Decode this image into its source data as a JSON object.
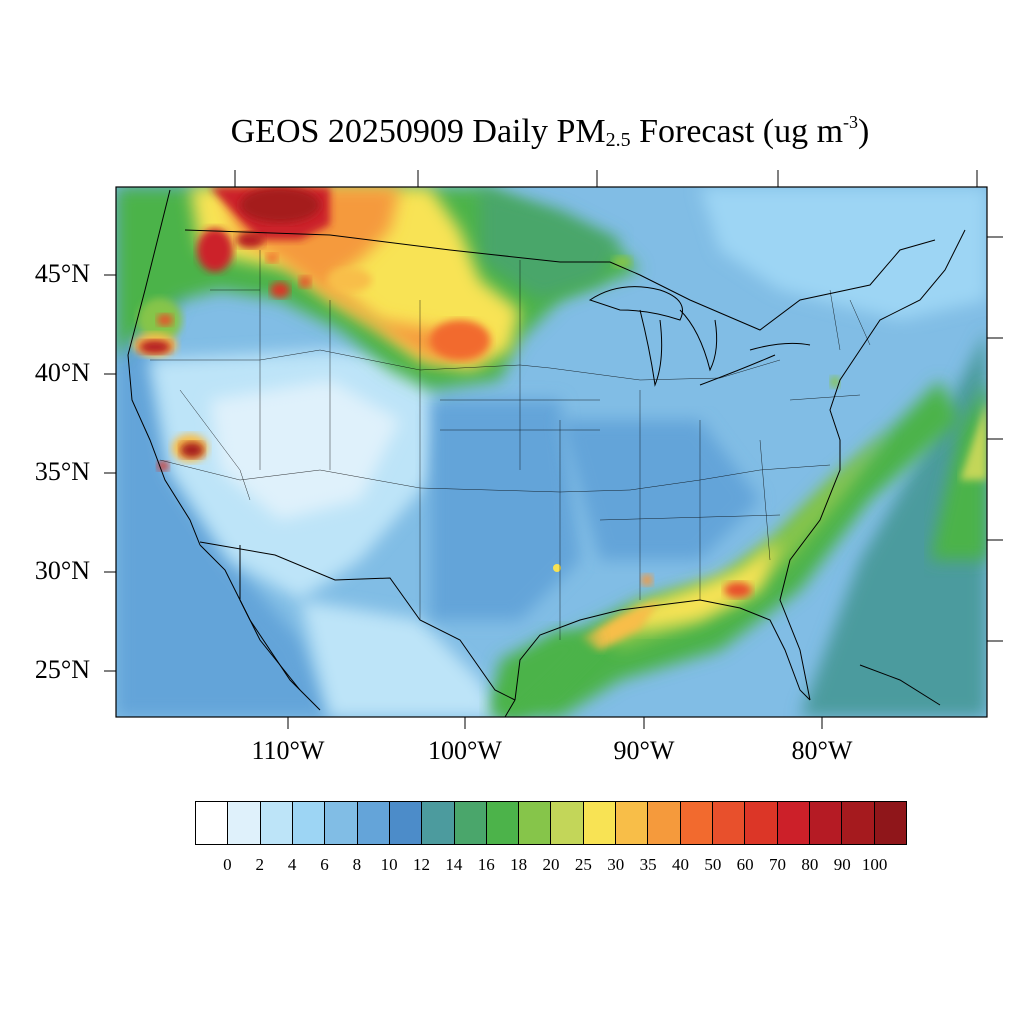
{
  "title": {
    "prefix": "GEOS 20250909 Daily PM",
    "subscript": "2.5",
    "middle": " Forecast (ug m",
    "superscript": "-3",
    "suffix": ")"
  },
  "latitude_labels": [
    "45°N",
    "40°N",
    "35°N",
    "30°N",
    "25°N"
  ],
  "longitude_labels": [
    "110°W",
    "100°W",
    "90°W",
    "80°W"
  ],
  "colorbar": {
    "colors": [
      "#ffffff",
      "#dff1fb",
      "#bde4f8",
      "#9dd5f4",
      "#81bde5",
      "#64a4d9",
      "#4c8cc9",
      "#4c9b9e",
      "#4aa66b",
      "#4cb34a",
      "#86c54a",
      "#c3d659",
      "#f8e354",
      "#f8be48",
      "#f59a3c",
      "#f26a2e",
      "#e8502c",
      "#dc3627",
      "#cc2029",
      "#b51b24",
      "#a51a1e",
      "#8f161a"
    ],
    "tick_labels": [
      "0",
      "2",
      "4",
      "6",
      "8",
      "10",
      "12",
      "14",
      "16",
      "18",
      "20",
      "25",
      "30",
      "35",
      "40",
      "50",
      "60",
      "70",
      "80",
      "90",
      "100"
    ]
  },
  "regions": [
    {
      "name": "pacific-northwest-smoke",
      "level": "100"
    },
    {
      "name": "northern-plains-plume",
      "level": "40"
    },
    {
      "name": "southeast-coastal-band",
      "level": "30"
    },
    {
      "name": "northern-california-fire",
      "level": "100"
    },
    {
      "name": "central-california-fire",
      "level": "100"
    }
  ]
}
